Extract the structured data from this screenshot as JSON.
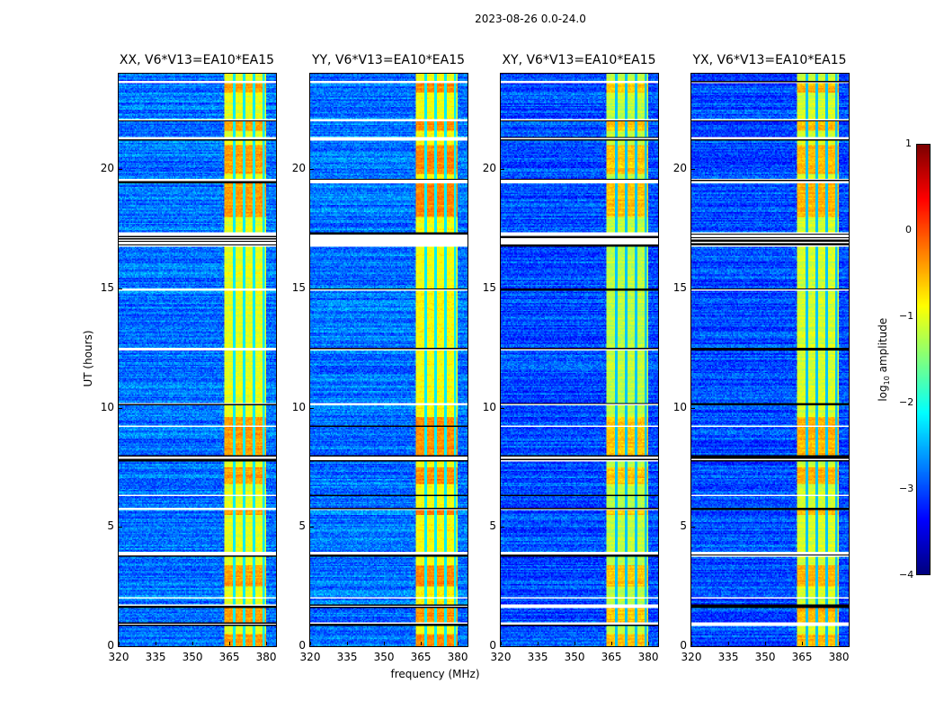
{
  "chart_data": {
    "type": "heatmap",
    "title": "2023-08-26 0.0-24.0",
    "xlabel": "frequency (MHz)",
    "ylabel": "UT (hours)",
    "xlim": [
      320,
      384
    ],
    "ylim": [
      0,
      24
    ],
    "xticks": [
      320,
      335,
      350,
      365,
      380
    ],
    "yticks": [
      0,
      5,
      10,
      15,
      20
    ],
    "panels": [
      {
        "title": "XX, V6*V13=EA10*EA15",
        "background": -2.8,
        "band_level": -1.0
      },
      {
        "title": "YY, V6*V13=EA10*EA15",
        "background": -2.8,
        "band_level": -0.9
      },
      {
        "title": "XY, V6*V13=EA10*EA15",
        "background": -3.0,
        "band_level": -1.2
      },
      {
        "title": "YX, V6*V13=EA10*EA15",
        "background": -3.0,
        "band_level": -1.1
      }
    ],
    "bright_band_mhz": [
      363,
      380
    ],
    "subbands_mhz": [
      [
        363,
        367
      ],
      [
        367,
        371
      ],
      [
        371,
        375
      ],
      [
        375,
        379
      ]
    ],
    "bright_hours": [
      [
        0.0,
        0.5
      ],
      [
        1.0,
        1.6
      ],
      [
        2.5,
        3.4
      ],
      [
        5.5,
        5.8
      ],
      [
        6.8,
        7.5
      ],
      [
        8.0,
        9.6
      ],
      [
        18.0,
        19.4
      ],
      [
        19.8,
        21.0
      ],
      [
        21.6,
        22.0
      ],
      [
        23.2,
        23.6
      ]
    ],
    "flagged_hours": [
      [
        0.85,
        1.0
      ],
      [
        1.6,
        1.75
      ],
      [
        2.0,
        2.05
      ],
      [
        3.75,
        3.95
      ],
      [
        5.7,
        5.78
      ],
      [
        6.3,
        6.35
      ],
      [
        7.75,
        8.0
      ],
      [
        9.2,
        9.25
      ],
      [
        10.1,
        10.2
      ],
      [
        12.4,
        12.5
      ],
      [
        14.9,
        15.0
      ],
      [
        16.75,
        17.35
      ],
      [
        19.4,
        19.6
      ],
      [
        21.2,
        21.35
      ],
      [
        22.0,
        22.1
      ],
      [
        23.6,
        23.7
      ]
    ],
    "colorbar": {
      "label": "log10 amplitude",
      "range": [
        -4,
        1
      ],
      "ticks": [
        1,
        0,
        -1,
        -2,
        -3,
        -4
      ],
      "tick_labels": [
        "1",
        "0",
        "−1",
        "−2",
        "−3",
        "−4"
      ],
      "colormap": "jet"
    }
  }
}
